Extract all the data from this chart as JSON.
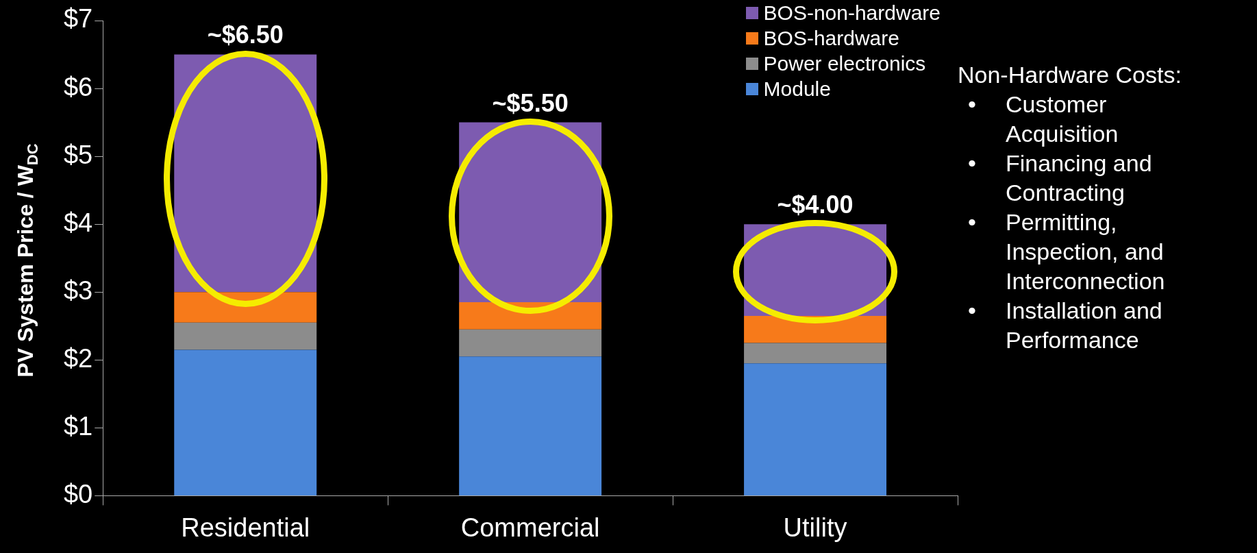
{
  "chart_data": {
    "type": "bar",
    "stacked": true,
    "ylabel": "PV System Price / W$_{DC}$",
    "categories": [
      "Residential",
      "Commercial",
      "Utility"
    ],
    "series": [
      {
        "name": "Module",
        "color": "#4a86d8",
        "values": [
          2.15,
          2.05,
          1.95
        ]
      },
      {
        "name": "Power electronics",
        "color": "#8c8c8c",
        "values": [
          0.4,
          0.4,
          0.3
        ]
      },
      {
        "name": "BOS-hardware",
        "color": "#f77a1a",
        "values": [
          0.45,
          0.4,
          0.4
        ]
      },
      {
        "name": "BOS-non-hardware",
        "color": "#7d5bb0",
        "values": [
          3.5,
          2.65,
          1.35
        ]
      }
    ],
    "ylim": [
      0,
      7
    ],
    "yticks": [
      {
        "value": 0,
        "label": "$0"
      },
      {
        "value": 1,
        "label": "$1"
      },
      {
        "value": 2,
        "label": "$2"
      },
      {
        "value": 3,
        "label": "$3"
      },
      {
        "value": 4,
        "label": "$4"
      },
      {
        "value": 5,
        "label": "$5"
      },
      {
        "value": 6,
        "label": "$6"
      },
      {
        "value": 7,
        "label": "$7"
      }
    ],
    "totals": [
      "~$6.50",
      "~$5.50",
      "~$4.00"
    ],
    "grid": false,
    "legend": "top right",
    "annotations": [
      "Non-Hardware Costs:",
      "•\tCustomer Acquisition",
      "•\tFinancing and Contracting",
      "•\tPermitting, Inspection, and Interconnection",
      "•\tInstallation and Performance"
    ]
  }
}
